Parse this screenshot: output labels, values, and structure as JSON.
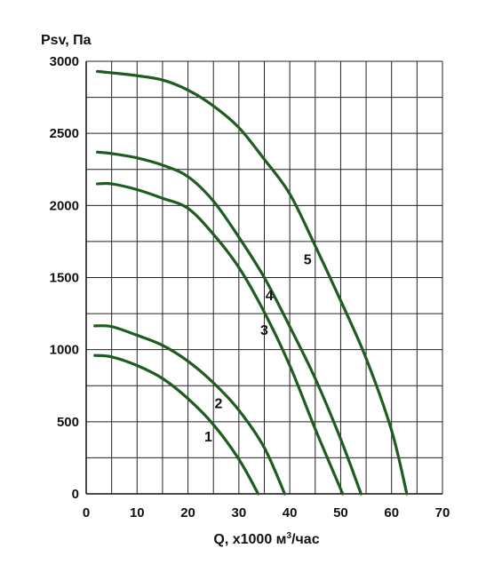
{
  "chart_data": {
    "type": "line",
    "title": "",
    "ylabel": "Psv, Па",
    "xlabel_main": "Q, х1000 м",
    "xlabel_sup": "3",
    "xlabel_tail": "/час",
    "xlim": [
      0,
      70
    ],
    "ylim": [
      0,
      3000
    ],
    "x_ticks": [
      0,
      10,
      20,
      30,
      40,
      50,
      60,
      70
    ],
    "y_ticks": [
      0,
      500,
      1000,
      1500,
      2000,
      2500,
      3000
    ],
    "x_tick_labels": [
      "0",
      "10",
      "20",
      "30",
      "40",
      "50",
      "60",
      "70"
    ],
    "y_tick_labels": [
      "0",
      "500",
      "1000",
      "1500",
      "2000",
      "2500",
      "3000"
    ],
    "grid": true,
    "grid_color": "#222222",
    "line_color": "#1f5c1f",
    "series": [
      {
        "name": "1",
        "label_at": [
          24,
          400
        ],
        "points": [
          [
            1.7,
            960
          ],
          [
            5,
            950
          ],
          [
            10,
            890
          ],
          [
            15,
            800
          ],
          [
            20,
            660
          ],
          [
            25,
            480
          ],
          [
            30,
            240
          ],
          [
            33.8,
            0
          ]
        ]
      },
      {
        "name": "2",
        "label_at": [
          26,
          630
        ],
        "points": [
          [
            1.7,
            1165
          ],
          [
            5,
            1160
          ],
          [
            10,
            1100
          ],
          [
            15,
            1030
          ],
          [
            20,
            920
          ],
          [
            25,
            770
          ],
          [
            30,
            580
          ],
          [
            35,
            320
          ],
          [
            39,
            0
          ]
        ]
      },
      {
        "name": "3",
        "label_at": [
          35,
          1140
        ],
        "points": [
          [
            2.2,
            2150
          ],
          [
            5,
            2150
          ],
          [
            10,
            2110
          ],
          [
            15,
            2050
          ],
          [
            20,
            1980
          ],
          [
            25,
            1800
          ],
          [
            30,
            1570
          ],
          [
            35,
            1260
          ],
          [
            40,
            890
          ],
          [
            45,
            450
          ],
          [
            50.4,
            0
          ]
        ]
      },
      {
        "name": "4",
        "label_at": [
          36,
          1380
        ],
        "points": [
          [
            2.2,
            2370
          ],
          [
            5,
            2360
          ],
          [
            10,
            2330
          ],
          [
            15,
            2280
          ],
          [
            20,
            2200
          ],
          [
            25,
            2030
          ],
          [
            30,
            1780
          ],
          [
            35,
            1500
          ],
          [
            40,
            1160
          ],
          [
            45,
            800
          ],
          [
            50,
            380
          ],
          [
            54,
            0
          ]
        ]
      },
      {
        "name": "5",
        "label_at": [
          43.5,
          1630
        ],
        "points": [
          [
            2.2,
            2930
          ],
          [
            5,
            2920
          ],
          [
            10,
            2900
          ],
          [
            15,
            2870
          ],
          [
            20,
            2800
          ],
          [
            25,
            2690
          ],
          [
            30,
            2540
          ],
          [
            35,
            2320
          ],
          [
            40,
            2080
          ],
          [
            45,
            1720
          ],
          [
            50,
            1340
          ],
          [
            55,
            940
          ],
          [
            60,
            440
          ],
          [
            63,
            0
          ]
        ]
      }
    ]
  }
}
